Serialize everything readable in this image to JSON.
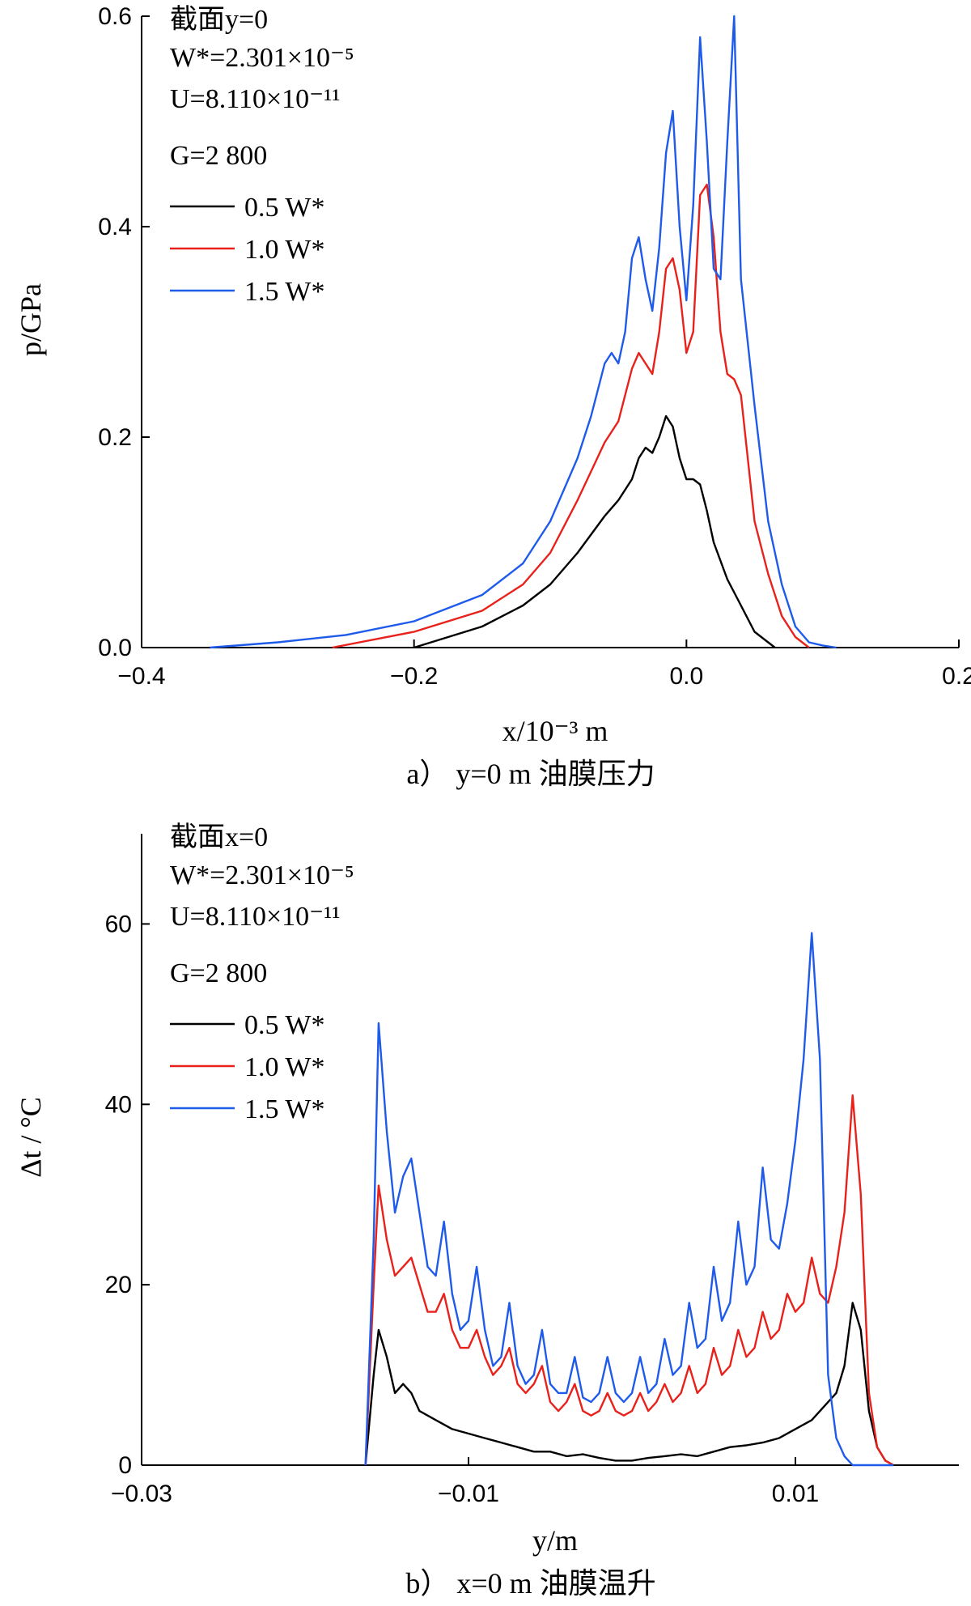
{
  "chart_data": [
    {
      "type": "line",
      "caption": "a）  y=0 m 油膜压力",
      "xlabel": "x/10⁻³ m",
      "ylabel": "p/GPa",
      "xlim": [
        -0.4,
        0.2
      ],
      "ylim": [
        0,
        0.6
      ],
      "xticks": [
        -0.4,
        -0.2,
        0.0,
        0.2
      ],
      "xtick_labels": [
        "−0.4",
        "−0.2",
        "0.0",
        "0.2"
      ],
      "yticks": [
        0,
        0.2,
        0.4,
        0.6
      ],
      "ytick_labels": [
        "0.0",
        "0.2",
        "0.4",
        "0.6"
      ],
      "info": [
        "截面y=0",
        "W*=2.301×10⁻⁵",
        "U=8.110×10⁻¹¹",
        "G=2 800"
      ],
      "legend_position": "top-left",
      "series": [
        {
          "name": "0.5 W*",
          "color": "#000000",
          "x": [
            -0.2,
            -0.15,
            -0.12,
            -0.1,
            -0.08,
            -0.06,
            -0.05,
            -0.04,
            -0.035,
            -0.03,
            -0.025,
            -0.02,
            -0.015,
            -0.01,
            -0.005,
            0.0,
            0.005,
            0.01,
            0.015,
            0.02,
            0.03,
            0.04,
            0.05,
            0.06,
            0.065
          ],
          "y": [
            0,
            0.02,
            0.04,
            0.06,
            0.09,
            0.125,
            0.14,
            0.16,
            0.18,
            0.19,
            0.185,
            0.2,
            0.22,
            0.21,
            0.18,
            0.16,
            0.16,
            0.155,
            0.13,
            0.1,
            0.065,
            0.04,
            0.015,
            0.005,
            0
          ]
        },
        {
          "name": "1.0 W*",
          "color": "#e8211b",
          "x": [
            -0.26,
            -0.2,
            -0.15,
            -0.12,
            -0.1,
            -0.08,
            -0.06,
            -0.05,
            -0.045,
            -0.04,
            -0.035,
            -0.03,
            -0.025,
            -0.02,
            -0.015,
            -0.01,
            -0.005,
            0.0,
            0.005,
            0.01,
            0.015,
            0.02,
            0.025,
            0.03,
            0.035,
            0.04,
            0.05,
            0.06,
            0.07,
            0.08,
            0.09
          ],
          "y": [
            0,
            0.015,
            0.035,
            0.06,
            0.09,
            0.14,
            0.195,
            0.215,
            0.24,
            0.265,
            0.28,
            0.27,
            0.26,
            0.3,
            0.36,
            0.37,
            0.34,
            0.28,
            0.3,
            0.43,
            0.44,
            0.39,
            0.3,
            0.26,
            0.255,
            0.24,
            0.12,
            0.07,
            0.03,
            0.01,
            0
          ]
        },
        {
          "name": "1.5 W*",
          "color": "#1f5bea",
          "x": [
            -0.35,
            -0.3,
            -0.25,
            -0.2,
            -0.15,
            -0.12,
            -0.1,
            -0.08,
            -0.07,
            -0.06,
            -0.055,
            -0.05,
            -0.045,
            -0.04,
            -0.035,
            -0.03,
            -0.025,
            -0.02,
            -0.015,
            -0.01,
            -0.005,
            0.0,
            0.005,
            0.01,
            0.015,
            0.02,
            0.025,
            0.03,
            0.035,
            0.04,
            0.05,
            0.06,
            0.07,
            0.08,
            0.09,
            0.1,
            0.11
          ],
          "y": [
            0,
            0.005,
            0.012,
            0.025,
            0.05,
            0.08,
            0.12,
            0.18,
            0.22,
            0.27,
            0.28,
            0.27,
            0.3,
            0.37,
            0.39,
            0.35,
            0.32,
            0.38,
            0.47,
            0.51,
            0.4,
            0.33,
            0.42,
            0.58,
            0.48,
            0.36,
            0.35,
            0.48,
            0.6,
            0.35,
            0.23,
            0.12,
            0.06,
            0.02,
            0.005,
            0.002,
            0
          ]
        }
      ]
    },
    {
      "type": "line",
      "caption": "b）  x=0 m 油膜温升",
      "xlabel": "y/m",
      "ylabel": "Δt / °C",
      "xlim": [
        -0.03,
        0.02
      ],
      "ylim": [
        0,
        70
      ],
      "xticks": [
        -0.03,
        -0.01,
        0.01
      ],
      "xtick_labels": [
        "−0.03",
        "−0.01",
        "0.01"
      ],
      "yticks": [
        0,
        20,
        40,
        60
      ],
      "ytick_labels": [
        "0",
        "20",
        "40",
        "60"
      ],
      "info": [
        "截面x=0",
        "W*=2.301×10⁻⁵",
        "U=8.110×10⁻¹¹",
        "G=2 800"
      ],
      "legend_position": "top-left",
      "series": [
        {
          "name": "0.5 W*",
          "color": "#000000",
          "x": [
            -0.0163,
            -0.0158,
            -0.0155,
            -0.015,
            -0.0145,
            -0.014,
            -0.0135,
            -0.013,
            -0.012,
            -0.011,
            -0.01,
            -0.009,
            -0.008,
            -0.007,
            -0.006,
            -0.005,
            -0.004,
            -0.003,
            -0.002,
            -0.001,
            0.0,
            0.001,
            0.002,
            0.003,
            0.004,
            0.005,
            0.006,
            0.007,
            0.008,
            0.009,
            0.01,
            0.011,
            0.012,
            0.0125,
            0.013,
            0.0135,
            0.014,
            0.0145,
            0.015,
            0.0155,
            0.016
          ],
          "y": [
            0,
            10,
            15,
            12,
            8,
            9,
            8,
            6,
            5,
            4,
            3.5,
            3,
            2.5,
            2,
            1.5,
            1.5,
            1,
            1.2,
            0.8,
            0.5,
            0.5,
            0.8,
            1,
            1.2,
            1,
            1.5,
            2,
            2.2,
            2.5,
            3,
            4,
            5,
            7,
            8,
            11,
            18,
            15,
            6,
            2,
            0.5,
            0
          ]
        },
        {
          "name": "1.0 W*",
          "color": "#e8211b",
          "x": [
            -0.0163,
            -0.0158,
            -0.0155,
            -0.015,
            -0.0145,
            -0.014,
            -0.0135,
            -0.013,
            -0.0125,
            -0.012,
            -0.0115,
            -0.011,
            -0.0105,
            -0.01,
            -0.0095,
            -0.009,
            -0.0085,
            -0.008,
            -0.0075,
            -0.007,
            -0.0065,
            -0.006,
            -0.0055,
            -0.005,
            -0.0045,
            -0.004,
            -0.0035,
            -0.003,
            -0.0025,
            -0.002,
            -0.0015,
            -0.001,
            -0.0005,
            0.0,
            0.0005,
            0.001,
            0.0015,
            0.002,
            0.0025,
            0.003,
            0.0035,
            0.004,
            0.0045,
            0.005,
            0.0055,
            0.006,
            0.0065,
            0.007,
            0.0075,
            0.008,
            0.0085,
            0.009,
            0.0095,
            0.01,
            0.0105,
            0.011,
            0.0115,
            0.012,
            0.0125,
            0.013,
            0.0135,
            0.014,
            0.0145,
            0.015,
            0.0155,
            0.016
          ],
          "y": [
            0,
            20,
            31,
            25,
            21,
            22,
            23,
            20,
            17,
            17,
            19,
            15,
            13,
            13,
            15,
            12,
            10,
            11,
            13,
            9,
            8,
            9,
            11,
            7,
            6,
            7,
            9,
            6,
            5.5,
            6,
            8,
            6,
            5.5,
            6,
            8,
            6,
            7,
            9,
            7,
            8,
            11,
            8,
            9,
            13,
            10,
            11,
            15,
            12,
            13,
            17,
            14,
            15,
            19,
            17,
            18,
            23,
            19,
            18,
            22,
            28,
            41,
            30,
            8,
            2,
            0.5,
            0
          ]
        },
        {
          "name": "1.5 W*",
          "color": "#1f5bea",
          "x": [
            -0.0163,
            -0.0158,
            -0.0155,
            -0.015,
            -0.0145,
            -0.014,
            -0.0135,
            -0.013,
            -0.0125,
            -0.012,
            -0.0115,
            -0.011,
            -0.0105,
            -0.01,
            -0.0095,
            -0.009,
            -0.0085,
            -0.008,
            -0.0075,
            -0.007,
            -0.0065,
            -0.006,
            -0.0055,
            -0.005,
            -0.0045,
            -0.004,
            -0.0035,
            -0.003,
            -0.0025,
            -0.002,
            -0.0015,
            -0.001,
            -0.0005,
            0.0,
            0.0005,
            0.001,
            0.0015,
            0.002,
            0.0025,
            0.003,
            0.0035,
            0.004,
            0.0045,
            0.005,
            0.0055,
            0.006,
            0.0065,
            0.007,
            0.0075,
            0.008,
            0.0085,
            0.009,
            0.0095,
            0.01,
            0.0105,
            0.011,
            0.0115,
            0.012,
            0.0125,
            0.013,
            0.0135,
            0.014,
            0.0145,
            0.015,
            0.0155,
            0.016
          ],
          "y": [
            0,
            25,
            49,
            37,
            28,
            32,
            34,
            28,
            22,
            21,
            27,
            19,
            15,
            16,
            22,
            15,
            11,
            12,
            18,
            11,
            9,
            10,
            15,
            9,
            8,
            8,
            12,
            7.5,
            7,
            8,
            12,
            8,
            7,
            8,
            12,
            8,
            9,
            14,
            10,
            11,
            18,
            13,
            14,
            22,
            16,
            18,
            27,
            20,
            22,
            33,
            25,
            24,
            29,
            36,
            45,
            59,
            45,
            10,
            3,
            1,
            0,
            0,
            0,
            0,
            0,
            0
          ]
        }
      ]
    }
  ]
}
